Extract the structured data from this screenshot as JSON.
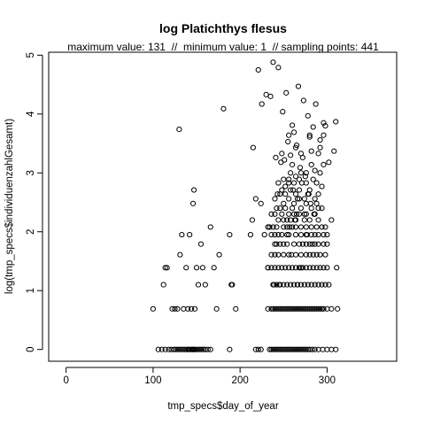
{
  "chart_data": {
    "type": "scatter",
    "title": "log Platichthys flesus",
    "subtitle": "maximum value: 131  //  minimum value: 1  // sampling points: 441",
    "xlabel": "tmp_specs$day_of_year",
    "ylabel": "log(tmp_specs$individuenzahlGesamt)",
    "xlim": [
      -20,
      380
    ],
    "ylim": [
      -0.2,
      5.05
    ],
    "x_ticks": [
      0,
      100,
      200,
      300
    ],
    "y_ticks": [
      0,
      1,
      2,
      3,
      4,
      5
    ],
    "x_tick_labels": [
      "0",
      "100",
      "200",
      "300"
    ],
    "y_tick_labels": [
      "0",
      "1",
      "2",
      "3",
      "4",
      "5"
    ],
    "grid": false,
    "marker": "open-circle",
    "points": [
      [
        100,
        0.69
      ],
      [
        112,
        1.1
      ],
      [
        114,
        1.39
      ],
      [
        116,
        1.39
      ],
      [
        122,
        0.69
      ],
      [
        125,
        0.69
      ],
      [
        128,
        0.69
      ],
      [
        131,
        1.61
      ],
      [
        133,
        1.95
      ],
      [
        130,
        3.74
      ],
      [
        135,
        0.69
      ],
      [
        138,
        1.39
      ],
      [
        140,
        0.69
      ],
      [
        142,
        1.95
      ],
      [
        144,
        0.69
      ],
      [
        146,
        2.48
      ],
      [
        147,
        2.71
      ],
      [
        148,
        0.69
      ],
      [
        150,
        1.39
      ],
      [
        152,
        1.1
      ],
      [
        155,
        1.79
      ],
      [
        157,
        1.39
      ],
      [
        160,
        1.1
      ],
      [
        166,
        2.08
      ],
      [
        170,
        1.39
      ],
      [
        173,
        0.69
      ],
      [
        176,
        1.61
      ],
      [
        181,
        4.09
      ],
      [
        188,
        1.95
      ],
      [
        190,
        1.1
      ],
      [
        191,
        1.1
      ],
      [
        195,
        0.69
      ],
      [
        212,
        1.95
      ],
      [
        214,
        2.2
      ],
      [
        215,
        3.43
      ],
      [
        218,
        2.56
      ],
      [
        221,
        4.75
      ],
      [
        224,
        2.48
      ],
      [
        225,
        4.17
      ],
      [
        228,
        1.95
      ],
      [
        230,
        4.33
      ],
      [
        232,
        1.39
      ],
      [
        234,
        2.08
      ],
      [
        235,
        4.3
      ],
      [
        236,
        1.61
      ],
      [
        238,
        4.88
      ],
      [
        239,
        1.1
      ],
      [
        240,
        2.3
      ],
      [
        241,
        3.26
      ],
      [
        242,
        1.79
      ],
      [
        243,
        2.64
      ],
      [
        244,
        4.79
      ],
      [
        245,
        1.1
      ],
      [
        246,
        2.4
      ],
      [
        247,
        3.18
      ],
      [
        248,
        1.39
      ],
      [
        249,
        4.04
      ],
      [
        250,
        2.2
      ],
      [
        251,
        3.22
      ],
      [
        252,
        2.77
      ],
      [
        253,
        4.36
      ],
      [
        254,
        1.95
      ],
      [
        255,
        3.53
      ],
      [
        256,
        2.89
      ],
      [
        257,
        2.08
      ],
      [
        258,
        3.3
      ],
      [
        259,
        1.61
      ],
      [
        260,
        3.81
      ],
      [
        261,
        2.71
      ],
      [
        262,
        3.69
      ],
      [
        263,
        2.2
      ],
      [
        264,
        2.94
      ],
      [
        265,
        3.47
      ],
      [
        266,
        1.1
      ],
      [
        267,
        4.47
      ],
      [
        268,
        2.56
      ],
      [
        269,
        3.09
      ],
      [
        270,
        1.39
      ],
      [
        271,
        2.83
      ],
      [
        272,
        3.26
      ],
      [
        273,
        4.23
      ],
      [
        274,
        2.3
      ],
      [
        275,
        2.94
      ],
      [
        276,
        3.0
      ],
      [
        277,
        1.95
      ],
      [
        278,
        3.97
      ],
      [
        279,
        2.64
      ],
      [
        280,
        3.61
      ],
      [
        281,
        2.48
      ],
      [
        282,
        3.37
      ],
      [
        283,
        1.79
      ],
      [
        284,
        3.78
      ],
      [
        285,
        2.3
      ],
      [
        286,
        3.04
      ],
      [
        287,
        4.17
      ],
      [
        288,
        1.61
      ],
      [
        290,
        2.4
      ],
      [
        292,
        3.56
      ],
      [
        294,
        2.77
      ],
      [
        296,
        3.85
      ],
      [
        298,
        3.8
      ],
      [
        300,
        1.95
      ],
      [
        302,
        3.18
      ],
      [
        305,
        2.2
      ],
      [
        308,
        3.37
      ],
      [
        310,
        3.87
      ],
      [
        311,
        1.39
      ],
      [
        312,
        0.69
      ],
      [
        106,
        0
      ],
      [
        110,
        0
      ],
      [
        114,
        0
      ],
      [
        118,
        0
      ],
      [
        121,
        0
      ],
      [
        124,
        0
      ],
      [
        126,
        0
      ],
      [
        128,
        0
      ],
      [
        130,
        0
      ],
      [
        132,
        0
      ],
      [
        134,
        0
      ],
      [
        136,
        0
      ],
      [
        138,
        0
      ],
      [
        140,
        0
      ],
      [
        141,
        0
      ],
      [
        142,
        0
      ],
      [
        144,
        0
      ],
      [
        145,
        0
      ],
      [
        146,
        0
      ],
      [
        147,
        0
      ],
      [
        148,
        0
      ],
      [
        150,
        0
      ],
      [
        152,
        0
      ],
      [
        154,
        0
      ],
      [
        156,
        0
      ],
      [
        158,
        0
      ],
      [
        160,
        0
      ],
      [
        163,
        0
      ],
      [
        166,
        0
      ],
      [
        188,
        0
      ],
      [
        218,
        0
      ],
      [
        221,
        0
      ],
      [
        224,
        0
      ],
      [
        234,
        0
      ],
      [
        236,
        0
      ],
      [
        238,
        0
      ],
      [
        240,
        0
      ],
      [
        242,
        0
      ],
      [
        244,
        0
      ],
      [
        246,
        0
      ],
      [
        248,
        0
      ],
      [
        250,
        0
      ],
      [
        252,
        0
      ],
      [
        254,
        0
      ],
      [
        256,
        0
      ],
      [
        258,
        0
      ],
      [
        260,
        0
      ],
      [
        262,
        0
      ],
      [
        264,
        0
      ],
      [
        266,
        0
      ],
      [
        268,
        0
      ],
      [
        270,
        0
      ],
      [
        272,
        0
      ],
      [
        274,
        0
      ],
      [
        276,
        0
      ],
      [
        278,
        0
      ],
      [
        280,
        0
      ],
      [
        283,
        0
      ],
      [
        286,
        0
      ],
      [
        290,
        0
      ],
      [
        295,
        0
      ],
      [
        300,
        0
      ],
      [
        305,
        0
      ],
      [
        310,
        0
      ],
      [
        232,
        0.69
      ],
      [
        236,
        0.69
      ],
      [
        238,
        0.69
      ],
      [
        240,
        0.69
      ],
      [
        242,
        0.69
      ],
      [
        244,
        0.69
      ],
      [
        246,
        0.69
      ],
      [
        248,
        0.69
      ],
      [
        250,
        0.69
      ],
      [
        252,
        0.69
      ],
      [
        254,
        0.69
      ],
      [
        256,
        0.69
      ],
      [
        258,
        0.69
      ],
      [
        260,
        0.69
      ],
      [
        262,
        0.69
      ],
      [
        264,
        0.69
      ],
      [
        266,
        0.69
      ],
      [
        268,
        0.69
      ],
      [
        270,
        0.69
      ],
      [
        272,
        0.69
      ],
      [
        274,
        0.69
      ],
      [
        276,
        0.69
      ],
      [
        278,
        0.69
      ],
      [
        280,
        0.69
      ],
      [
        282,
        0.69
      ],
      [
        284,
        0.69
      ],
      [
        286,
        0.69
      ],
      [
        288,
        0.69
      ],
      [
        290,
        0.69
      ],
      [
        292,
        0.69
      ],
      [
        294,
        0.69
      ],
      [
        296,
        0.69
      ],
      [
        300,
        0.69
      ],
      [
        305,
        0.69
      ],
      [
        238,
        1.1
      ],
      [
        242,
        1.1
      ],
      [
        246,
        1.1
      ],
      [
        250,
        1.1
      ],
      [
        254,
        1.1
      ],
      [
        258,
        1.1
      ],
      [
        262,
        1.1
      ],
      [
        266,
        1.1
      ],
      [
        270,
        1.1
      ],
      [
        274,
        1.1
      ],
      [
        278,
        1.1
      ],
      [
        282,
        1.1
      ],
      [
        286,
        1.1
      ],
      [
        290,
        1.1
      ],
      [
        294,
        1.1
      ],
      [
        298,
        1.1
      ],
      [
        302,
        1.1
      ],
      [
        232,
        1.39
      ],
      [
        236,
        1.39
      ],
      [
        240,
        1.39
      ],
      [
        244,
        1.39
      ],
      [
        252,
        1.39
      ],
      [
        256,
        1.39
      ],
      [
        260,
        1.39
      ],
      [
        264,
        1.39
      ],
      [
        268,
        1.39
      ],
      [
        272,
        1.39
      ],
      [
        276,
        1.39
      ],
      [
        280,
        1.39
      ],
      [
        284,
        1.39
      ],
      [
        288,
        1.39
      ],
      [
        292,
        1.39
      ],
      [
        296,
        1.39
      ],
      [
        300,
        1.39
      ],
      [
        240,
        1.61
      ],
      [
        244,
        1.61
      ],
      [
        250,
        1.61
      ],
      [
        256,
        1.61
      ],
      [
        264,
        1.61
      ],
      [
        270,
        1.61
      ],
      [
        276,
        1.61
      ],
      [
        280,
        1.61
      ],
      [
        284,
        1.61
      ],
      [
        292,
        1.61
      ],
      [
        298,
        1.61
      ],
      [
        240,
        1.79
      ],
      [
        246,
        1.79
      ],
      [
        250,
        1.79
      ],
      [
        254,
        1.79
      ],
      [
        262,
        1.79
      ],
      [
        268,
        1.79
      ],
      [
        272,
        1.79
      ],
      [
        276,
        1.79
      ],
      [
        280,
        1.79
      ],
      [
        286,
        1.79
      ],
      [
        290,
        1.79
      ],
      [
        296,
        1.79
      ],
      [
        300,
        1.79
      ],
      [
        236,
        1.95
      ],
      [
        240,
        1.95
      ],
      [
        244,
        1.95
      ],
      [
        248,
        1.95
      ],
      [
        256,
        1.95
      ],
      [
        264,
        1.95
      ],
      [
        270,
        1.95
      ],
      [
        276,
        1.95
      ],
      [
        282,
        1.95
      ],
      [
        286,
        1.95
      ],
      [
        290,
        1.95
      ],
      [
        296,
        1.95
      ],
      [
        232,
        2.08
      ],
      [
        238,
        2.08
      ],
      [
        242,
        2.08
      ],
      [
        250,
        2.08
      ],
      [
        254,
        2.08
      ],
      [
        260,
        2.08
      ],
      [
        264,
        2.08
      ],
      [
        270,
        2.08
      ],
      [
        276,
        2.08
      ],
      [
        282,
        2.08
      ],
      [
        288,
        2.08
      ],
      [
        294,
        2.08
      ],
      [
        298,
        2.08
      ],
      [
        244,
        2.2
      ],
      [
        254,
        2.2
      ],
      [
        258,
        2.2
      ],
      [
        264,
        2.2
      ],
      [
        274,
        2.2
      ],
      [
        280,
        2.2
      ],
      [
        290,
        2.2
      ],
      [
        236,
        2.3
      ],
      [
        248,
        2.3
      ],
      [
        256,
        2.3
      ],
      [
        262,
        2.3
      ],
      [
        265,
        2.3
      ],
      [
        268,
        2.3
      ],
      [
        276,
        2.3
      ],
      [
        286,
        2.3
      ],
      [
        242,
        2.4
      ],
      [
        252,
        2.4
      ],
      [
        260,
        2.4
      ],
      [
        270,
        2.4
      ],
      [
        282,
        2.4
      ],
      [
        294,
        2.4
      ],
      [
        250,
        2.48
      ],
      [
        262,
        2.48
      ],
      [
        276,
        2.48
      ],
      [
        288,
        2.48
      ],
      [
        240,
        2.56
      ],
      [
        256,
        2.56
      ],
      [
        266,
        2.56
      ],
      [
        274,
        2.56
      ],
      [
        286,
        2.56
      ],
      [
        246,
        2.64
      ],
      [
        252,
        2.64
      ],
      [
        264,
        2.64
      ],
      [
        278,
        2.64
      ],
      [
        290,
        2.64
      ],
      [
        248,
        2.71
      ],
      [
        258,
        2.71
      ],
      [
        268,
        2.71
      ],
      [
        280,
        2.71
      ],
      [
        244,
        2.83
      ],
      [
        256,
        2.83
      ],
      [
        262,
        2.83
      ],
      [
        276,
        2.83
      ],
      [
        288,
        2.83
      ],
      [
        250,
        2.89
      ],
      [
        268,
        2.89
      ],
      [
        284,
        2.89
      ],
      [
        258,
        3.0
      ],
      [
        270,
        3.0
      ],
      [
        292,
        3.0
      ],
      [
        260,
        3.14
      ],
      [
        282,
        3.14
      ],
      [
        296,
        3.14
      ],
      [
        248,
        3.33
      ],
      [
        270,
        3.33
      ],
      [
        290,
        3.33
      ],
      [
        264,
        3.43
      ],
      [
        292,
        3.43
      ],
      [
        256,
        3.64
      ],
      [
        280,
        3.64
      ],
      [
        296,
        3.64
      ]
    ]
  }
}
